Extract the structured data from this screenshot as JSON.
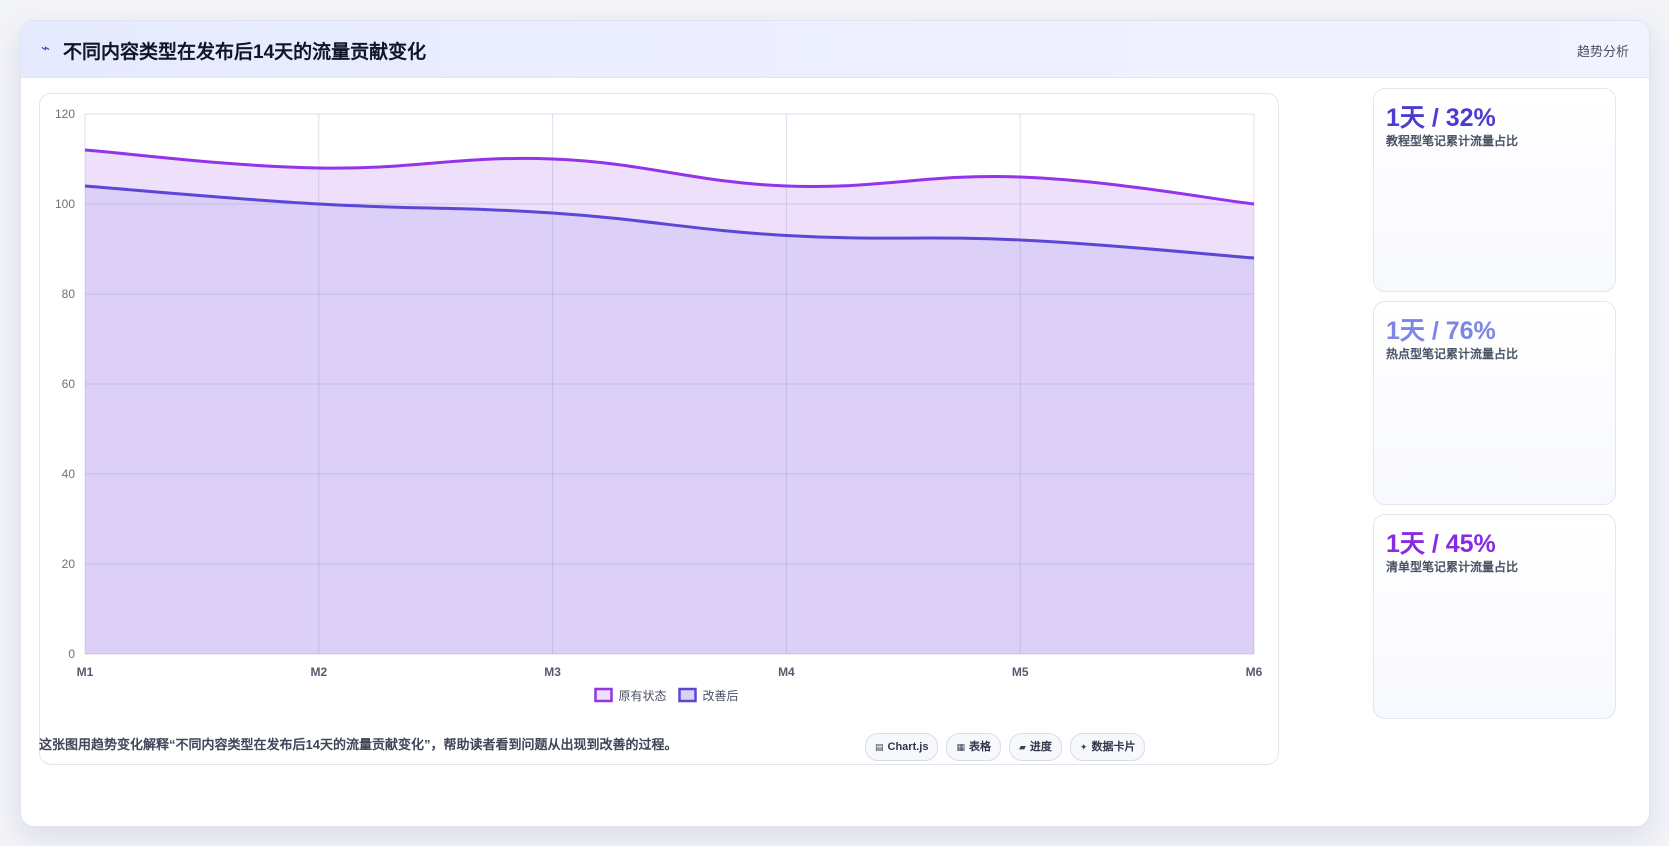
{
  "header": {
    "icon": "⌁",
    "title": "不同内容类型在发布后14天的流量贡献变化",
    "tag": "趋势分析"
  },
  "chart_data": {
    "type": "area",
    "categories": [
      "M1",
      "M2",
      "M3",
      "M4",
      "M5",
      "M6"
    ],
    "series": [
      {
        "name": "原有状态",
        "values": [
          112,
          108,
          110,
          104,
          106,
          100
        ],
        "color": "#9333ea",
        "fill": "#eedffa"
      },
      {
        "name": "改善后",
        "values": [
          104,
          100,
          98,
          93,
          92,
          88
        ],
        "color": "#5b47d6",
        "fill": "#dcd0f8"
      }
    ],
    "ylim": [
      0,
      120
    ],
    "yticks": [
      0,
      20,
      40,
      60,
      80,
      100,
      120
    ],
    "grid": true,
    "legend": "bottom-center",
    "xlabel": "",
    "ylabel": ""
  },
  "kpis": [
    {
      "value": "1天 / 32%",
      "label": "教程型笔记累计流量占比",
      "color": "#4c3ccf"
    },
    {
      "value": "1天 / 76%",
      "label": "热点型笔记累计流量占比",
      "color": "#7c86e6"
    },
    {
      "value": "1天 / 45%",
      "label": "清单型笔记累计流量占比",
      "color": "#8a2be2"
    }
  ],
  "footer": {
    "text": "这张图用趋势变化解释“不同内容类型在发布后14天的流量贡献变化”，帮助读者看到问题从出现到改善的过程。",
    "pills": [
      {
        "icon": "▤",
        "label": "Chart.js"
      },
      {
        "icon": "▦",
        "label": "表格"
      },
      {
        "icon": "▰",
        "label": "进度"
      },
      {
        "icon": "✦",
        "label": "数据卡片"
      }
    ]
  }
}
